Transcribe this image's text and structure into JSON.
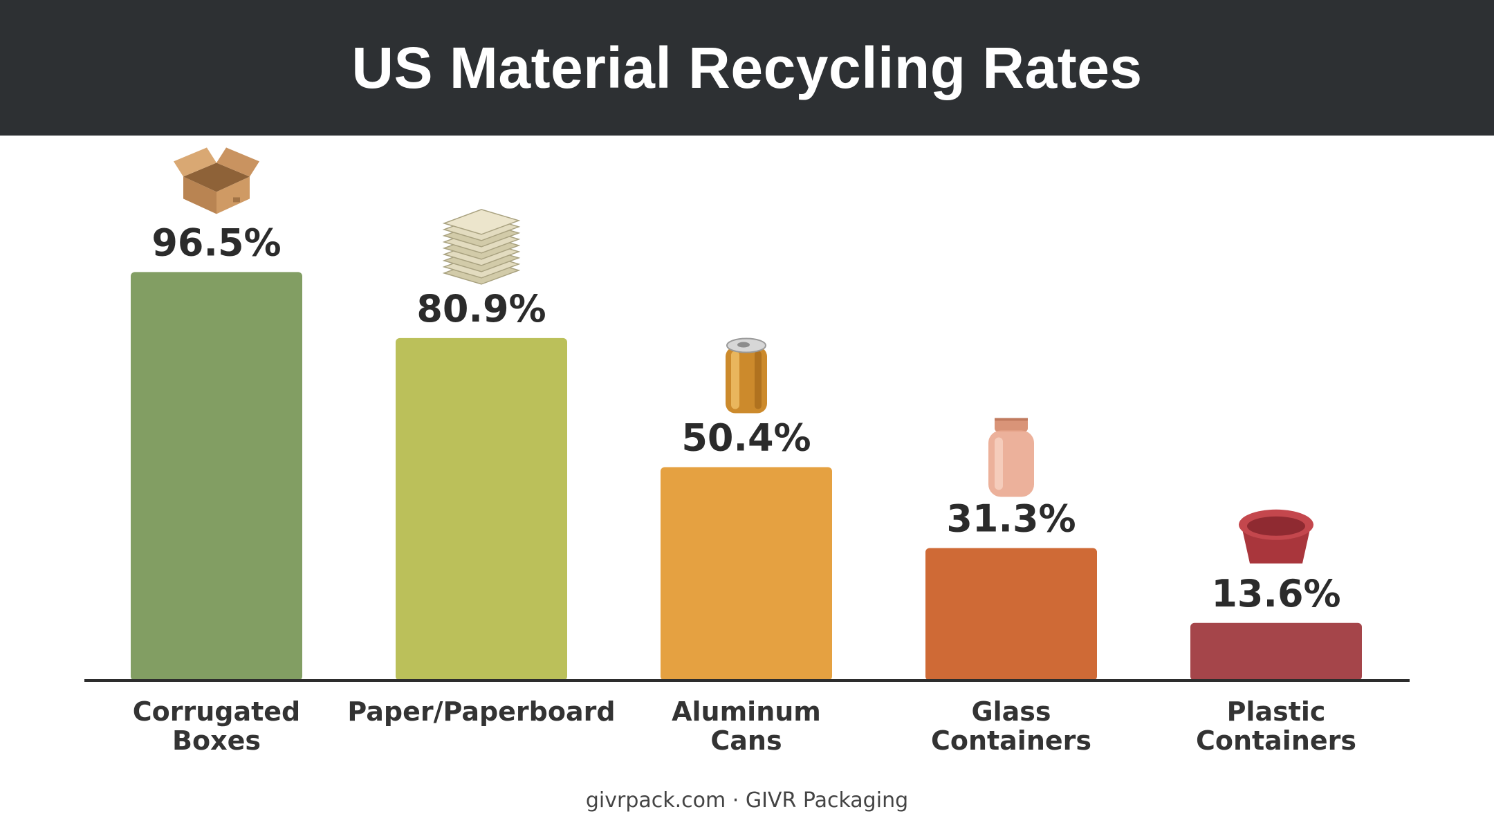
{
  "header": {
    "title": "US Material Recycling Rates"
  },
  "chart_data": {
    "type": "bar",
    "categories": [
      [
        "Corrugated",
        "Boxes"
      ],
      [
        "Paper/Paperboard"
      ],
      [
        "Aluminum",
        "Cans"
      ],
      [
        "Glass",
        "Containers"
      ],
      [
        "Plastic",
        "Containers"
      ]
    ],
    "values": [
      96.5,
      80.9,
      50.4,
      31.3,
      13.6
    ],
    "value_labels": [
      "96.5%",
      "80.9%",
      "50.4%",
      "31.3%",
      "13.6%"
    ],
    "colors": [
      "#829e63",
      "#bbc05a",
      "#e5a141",
      "#cf6a36",
      "#a5454a"
    ],
    "icons": [
      "cardboard-box-icon",
      "paper-stack-icon",
      "aluminum-can-icon",
      "glass-jar-icon",
      "plastic-container-icon"
    ],
    "ylim": [
      0,
      100
    ],
    "grid": false,
    "legend": "none"
  },
  "footer": {
    "source": "givrpack.com · GIVR Packaging"
  }
}
